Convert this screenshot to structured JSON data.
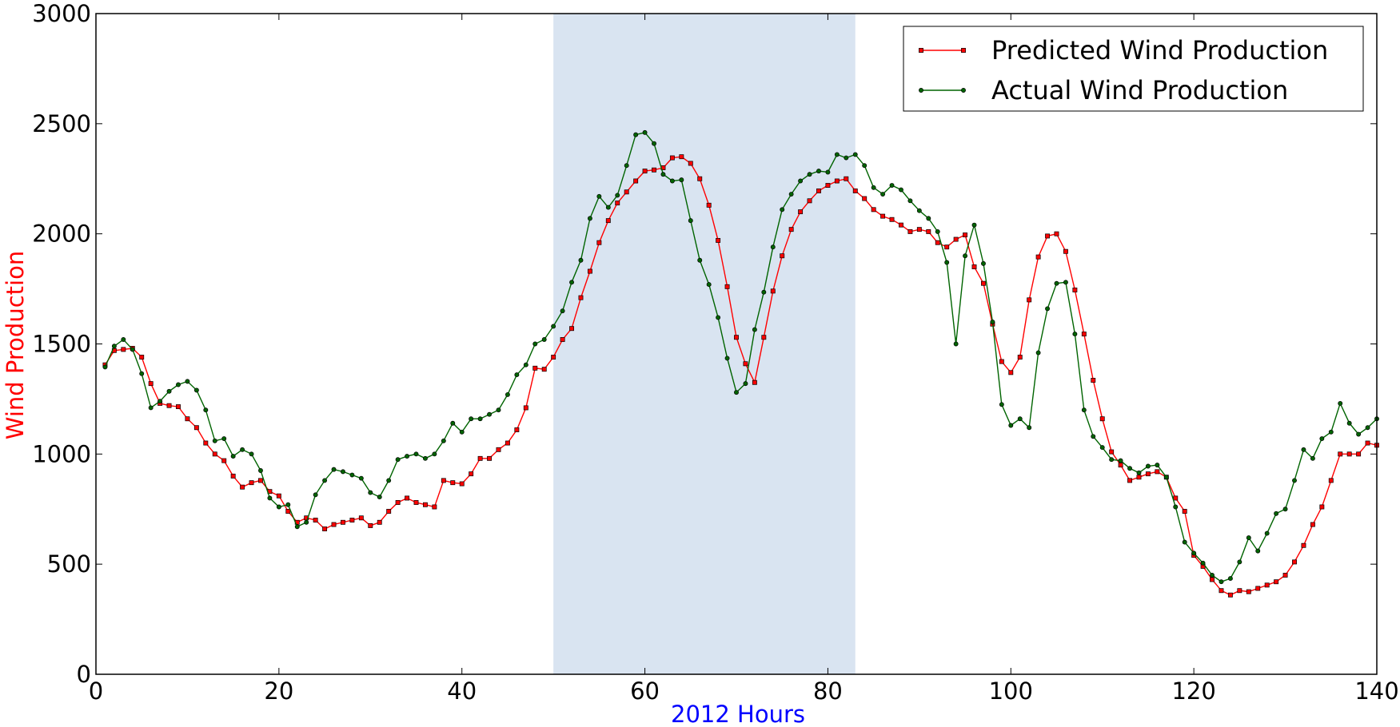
{
  "chart_data": {
    "type": "line",
    "title": "",
    "xlabel": "2012 Hours",
    "ylabel": "Wind Production",
    "xlim": [
      0,
      140
    ],
    "ylim": [
      0,
      3000
    ],
    "x_ticks": [
      0,
      20,
      40,
      60,
      80,
      100,
      120,
      140
    ],
    "y_ticks": [
      0,
      500,
      1000,
      1500,
      2000,
      2500,
      3000
    ],
    "grid": false,
    "legend_position": "top-right",
    "highlight_span": {
      "x_start": 50,
      "x_end": 83,
      "color": "#d9e4f1"
    },
    "colors": {
      "xlabel": "#0000ff",
      "ylabel": "#ff0000"
    },
    "x": [
      1,
      2,
      3,
      4,
      5,
      6,
      7,
      8,
      9,
      10,
      11,
      12,
      13,
      14,
      15,
      16,
      17,
      18,
      19,
      20,
      21,
      22,
      23,
      24,
      25,
      26,
      27,
      28,
      29,
      30,
      31,
      32,
      33,
      34,
      35,
      36,
      37,
      38,
      39,
      40,
      41,
      42,
      43,
      44,
      45,
      46,
      47,
      48,
      49,
      50,
      51,
      52,
      53,
      54,
      55,
      56,
      57,
      58,
      59,
      60,
      61,
      62,
      63,
      64,
      65,
      66,
      67,
      68,
      69,
      70,
      71,
      72,
      73,
      74,
      75,
      76,
      77,
      78,
      79,
      80,
      81,
      82,
      83,
      84,
      85,
      86,
      87,
      88,
      89,
      90,
      91,
      92,
      93,
      94,
      95,
      96,
      97,
      98,
      99,
      100,
      101,
      102,
      103,
      104,
      105,
      106,
      107,
      108,
      109,
      110,
      111,
      112,
      113,
      114,
      115,
      116,
      117,
      118,
      119,
      120,
      121,
      122,
      123,
      124,
      125,
      126,
      127,
      128,
      129,
      130,
      131,
      132,
      133,
      134,
      135,
      136,
      137,
      138,
      139,
      140
    ],
    "series": [
      {
        "name": "Predicted Wind Production",
        "color": "#ff0000",
        "marker": "square",
        "values": [
          1405,
          1470,
          1475,
          1480,
          1440,
          1320,
          1230,
          1220,
          1215,
          1160,
          1120,
          1050,
          1000,
          970,
          900,
          850,
          870,
          880,
          830,
          810,
          740,
          690,
          710,
          700,
          660,
          680,
          690,
          700,
          710,
          675,
          690,
          740,
          780,
          800,
          780,
          770,
          760,
          880,
          870,
          865,
          910,
          980,
          980,
          1020,
          1050,
          1110,
          1210,
          1390,
          1385,
          1440,
          1520,
          1570,
          1710,
          1830,
          1960,
          2060,
          2140,
          2190,
          2240,
          2285,
          2290,
          2300,
          2345,
          2350,
          2320,
          2250,
          2130,
          1970,
          1760,
          1530,
          1410,
          1325,
          1530,
          1740,
          1900,
          2020,
          2100,
          2150,
          2195,
          2220,
          2240,
          2250,
          2195,
          2160,
          2110,
          2080,
          2065,
          2040,
          2010,
          2020,
          2010,
          1960,
          1940,
          1975,
          1995,
          1850,
          1775,
          1590,
          1420,
          1370,
          1440,
          1700,
          1895,
          1990,
          2000,
          1920,
          1745,
          1545,
          1335,
          1160,
          1010,
          950,
          880,
          895,
          910,
          920,
          895,
          800,
          740,
          540,
          490,
          430,
          380,
          360,
          380,
          375,
          390,
          405,
          420,
          450,
          510,
          585,
          680,
          760,
          880,
          1000,
          1000,
          1000,
          1050,
          1040
        ]
      },
      {
        "name": "Actual Wind Production",
        "color": "#006400",
        "marker": "circle",
        "values": [
          1395,
          1490,
          1520,
          1475,
          1365,
          1210,
          1240,
          1285,
          1315,
          1330,
          1290,
          1200,
          1060,
          1070,
          990,
          1020,
          1000,
          925,
          800,
          760,
          770,
          670,
          690,
          815,
          880,
          930,
          920,
          905,
          890,
          825,
          805,
          880,
          975,
          990,
          1000,
          980,
          1000,
          1060,
          1140,
          1100,
          1160,
          1160,
          1180,
          1200,
          1270,
          1360,
          1405,
          1500,
          1520,
          1580,
          1650,
          1780,
          1880,
          2070,
          2170,
          2120,
          2175,
          2310,
          2450,
          2460,
          2410,
          2270,
          2240,
          2245,
          2060,
          1880,
          1770,
          1620,
          1435,
          1280,
          1320,
          1565,
          1735,
          1940,
          2110,
          2180,
          2240,
          2270,
          2285,
          2280,
          2360,
          2345,
          2360,
          2310,
          2210,
          2180,
          2220,
          2200,
          2150,
          2105,
          2070,
          2010,
          1870,
          1500,
          1900,
          2040,
          1865,
          1600,
          1225,
          1130,
          1160,
          1120,
          1460,
          1660,
          1775,
          1780,
          1545,
          1200,
          1080,
          1030,
          975,
          970,
          935,
          915,
          945,
          950,
          895,
          760,
          600,
          550,
          505,
          450,
          420,
          435,
          510,
          620,
          560,
          640,
          730,
          750,
          880,
          1020,
          980,
          1070,
          1100,
          1230,
          1140,
          1090,
          1120,
          1160
        ]
      }
    ]
  }
}
